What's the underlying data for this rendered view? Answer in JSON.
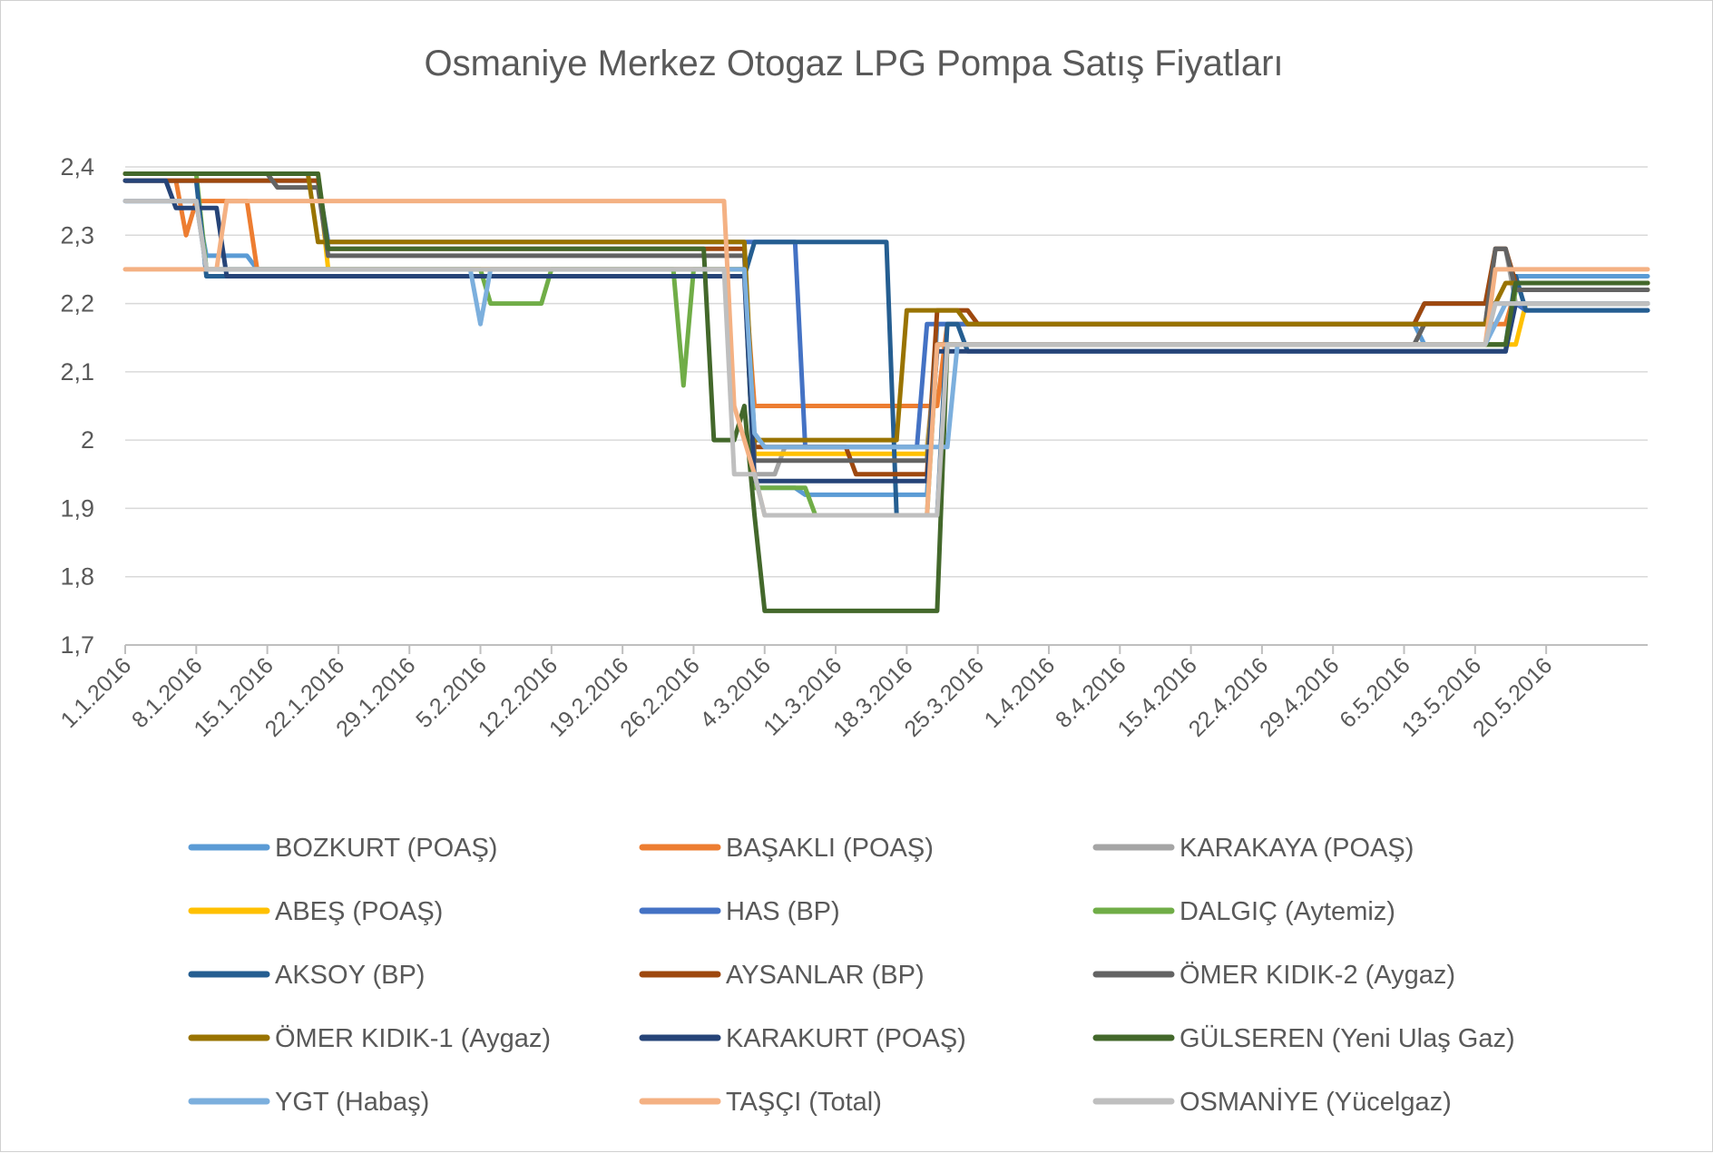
{
  "chart_data": {
    "type": "line",
    "title": "Osmaniye Merkez Otogaz LPG Pompa Satış Fiyatları",
    "xlabel": "",
    "ylabel": "",
    "ylim": [
      1.7,
      2.4
    ],
    "y_ticks": [
      "1,7",
      "1,8",
      "1,9",
      "2",
      "2,1",
      "2,2",
      "2,3",
      "2,4"
    ],
    "y_tick_values": [
      1.7,
      1.8,
      1.9,
      2.0,
      2.1,
      2.2,
      2.3,
      2.4
    ],
    "x_range": [
      "1.1.2016",
      "30.5.2016"
    ],
    "x_ticks": [
      "1.1.2016",
      "8.1.2016",
      "15.1.2016",
      "22.1.2016",
      "29.1.2016",
      "5.2.2016",
      "12.2.2016",
      "19.2.2016",
      "26.2.2016",
      "4.3.2016",
      "11.3.2016",
      "18.3.2016",
      "25.3.2016",
      "1.4.2016",
      "8.4.2016",
      "15.4.2016",
      "22.4.2016",
      "29.4.2016",
      "6.5.2016",
      "13.5.2016",
      "20.5.2016"
    ],
    "grid": true,
    "legend_position": "bottom",
    "series": [
      {
        "name": "BOZKURT (POAŞ)",
        "color": "#5B9BD5",
        "points": [
          [
            "1.1.2016",
            2.35
          ],
          [
            "8.1.2016",
            2.35
          ],
          [
            "9.1.2016",
            2.27
          ],
          [
            "13.1.2016",
            2.27
          ],
          [
            "14.1.2016",
            2.25
          ],
          [
            "26.2.2016",
            2.25
          ],
          [
            "27.2.2016",
            2.25
          ],
          [
            "2.3.2016",
            2.25
          ],
          [
            "3.3.2016",
            1.93
          ],
          [
            "7.3.2016",
            1.93
          ],
          [
            "8.3.2016",
            1.92
          ],
          [
            "20.3.2016",
            1.92
          ],
          [
            "21.3.2016",
            2.17
          ],
          [
            "3.4.2016",
            2.17
          ],
          [
            "7.4.2016",
            2.17
          ],
          [
            "7.5.2016",
            2.17
          ],
          [
            "8.5.2016",
            2.14
          ],
          [
            "16.5.2016",
            2.14
          ],
          [
            "17.5.2016",
            2.24
          ],
          [
            "30.5.2016",
            2.24
          ]
        ]
      },
      {
        "name": "BAŞAKLI (POAŞ)",
        "color": "#ED7D31",
        "points": [
          [
            "1.1.2016",
            2.38
          ],
          [
            "6.1.2016",
            2.38
          ],
          [
            "7.1.2016",
            2.3
          ],
          [
            "8.1.2016",
            2.35
          ],
          [
            "13.1.2016",
            2.35
          ],
          [
            "14.1.2016",
            2.25
          ],
          [
            "26.2.2016",
            2.25
          ],
          [
            "27.2.2016",
            2.25
          ],
          [
            "2.3.2016",
            2.25
          ],
          [
            "3.3.2016",
            2.05
          ],
          [
            "21.3.2016",
            2.05
          ],
          [
            "22.3.2016",
            2.17
          ],
          [
            "7.5.2016",
            2.17
          ],
          [
            "8.5.2016",
            2.17
          ],
          [
            "16.5.2016",
            2.17
          ],
          [
            "17.5.2016",
            2.22
          ],
          [
            "30.5.2016",
            2.22
          ]
        ]
      },
      {
        "name": "KARAKAYA (POAŞ)",
        "color": "#A5A5A5",
        "points": [
          [
            "1.1.2016",
            2.35
          ],
          [
            "8.1.2016",
            2.35
          ],
          [
            "9.1.2016",
            2.25
          ],
          [
            "26.2.2016",
            2.25
          ],
          [
            "2.3.2016",
            2.25
          ],
          [
            "3.3.2016",
            1.95
          ],
          [
            "5.3.2016",
            1.95
          ],
          [
            "6.3.2016",
            1.99
          ],
          [
            "20.3.2016",
            1.99
          ],
          [
            "21.3.2016",
            2.14
          ],
          [
            "7.5.2016",
            2.14
          ],
          [
            "8.5.2016",
            2.17
          ],
          [
            "14.5.2016",
            2.17
          ],
          [
            "15.5.2016",
            2.28
          ],
          [
            "16.5.2016",
            2.28
          ],
          [
            "17.5.2016",
            2.2
          ],
          [
            "30.5.2016",
            2.2
          ]
        ]
      },
      {
        "name": "ABEŞ (POAŞ)",
        "color": "#FFC000",
        "points": [
          [
            "1.1.2016",
            2.39
          ],
          [
            "20.1.2016",
            2.39
          ],
          [
            "21.1.2016",
            2.25
          ],
          [
            "26.2.2016",
            2.25
          ],
          [
            "2.3.2016",
            2.25
          ],
          [
            "3.3.2016",
            1.98
          ],
          [
            "20.3.2016",
            1.98
          ],
          [
            "21.3.2016",
            2.14
          ],
          [
            "16.5.2016",
            2.14
          ],
          [
            "17.5.2016",
            2.14
          ],
          [
            "18.5.2016",
            2.2
          ],
          [
            "30.5.2016",
            2.2
          ]
        ]
      },
      {
        "name": "HAS (BP)",
        "color": "#4472C4",
        "points": [
          [
            "1.1.2016",
            2.38
          ],
          [
            "20.1.2016",
            2.38
          ],
          [
            "21.1.2016",
            2.29
          ],
          [
            "2.3.2016",
            2.29
          ],
          [
            "3.3.2016",
            2.29
          ],
          [
            "7.3.2016",
            2.29
          ],
          [
            "8.3.2016",
            1.99
          ],
          [
            "11.3.2016",
            1.99
          ],
          [
            "12.3.2016",
            1.99
          ],
          [
            "19.3.2016",
            1.99
          ],
          [
            "20.3.2016",
            2.17
          ],
          [
            "22.3.2016",
            2.17
          ],
          [
            "23.3.2016",
            2.17
          ],
          [
            "7.5.2016",
            2.17
          ],
          [
            "8.5.2016",
            2.2
          ],
          [
            "17.5.2016",
            2.2
          ],
          [
            "18.5.2016",
            2.19
          ],
          [
            "30.5.2016",
            2.19
          ]
        ]
      },
      {
        "name": "DALGIÇ (Aytemiz)",
        "color": "#70AD47",
        "points": [
          [
            "1.1.2016",
            2.39
          ],
          [
            "8.1.2016",
            2.39
          ],
          [
            "9.1.2016",
            2.25
          ],
          [
            "5.2.2016",
            2.25
          ],
          [
            "6.2.2016",
            2.2
          ],
          [
            "11.2.2016",
            2.2
          ],
          [
            "12.2.2016",
            2.25
          ],
          [
            "24.2.2016",
            2.25
          ],
          [
            "25.2.2016",
            2.08
          ],
          [
            "26.2.2016",
            2.25
          ],
          [
            "2.3.2016",
            2.25
          ],
          [
            "3.3.2016",
            1.93
          ],
          [
            "8.3.2016",
            1.93
          ],
          [
            "9.3.2016",
            1.89
          ],
          [
            "20.3.2016",
            1.89
          ],
          [
            "21.3.2016",
            2.14
          ],
          [
            "15.5.2016",
            2.14
          ],
          [
            "16.5.2016",
            2.14
          ],
          [
            "17.5.2016",
            2.22
          ],
          [
            "30.5.2016",
            2.22
          ]
        ]
      },
      {
        "name": "AKSOY (BP)",
        "color": "#255E91",
        "points": [
          [
            "1.1.2016",
            2.38
          ],
          [
            "8.1.2016",
            2.38
          ],
          [
            "9.1.2016",
            2.24
          ],
          [
            "2.3.2016",
            2.24
          ],
          [
            "3.3.2016",
            2.29
          ],
          [
            "16.3.2016",
            2.29
          ],
          [
            "17.3.2016",
            1.89
          ],
          [
            "21.3.2016",
            1.89
          ],
          [
            "22.3.2016",
            2.17
          ],
          [
            "23.3.2016",
            2.17
          ],
          [
            "24.3.2016",
            2.13
          ],
          [
            "16.5.2016",
            2.13
          ],
          [
            "17.5.2016",
            2.24
          ],
          [
            "18.5.2016",
            2.19
          ],
          [
            "30.5.2016",
            2.19
          ]
        ]
      },
      {
        "name": "AYSANLAR (BP)",
        "color": "#9E480E",
        "points": [
          [
            "1.1.2016",
            2.38
          ],
          [
            "20.1.2016",
            2.38
          ],
          [
            "21.1.2016",
            2.28
          ],
          [
            "2.3.2016",
            2.28
          ],
          [
            "3.3.2016",
            1.99
          ],
          [
            "12.3.2016",
            1.99
          ],
          [
            "13.3.2016",
            1.95
          ],
          [
            "20.3.2016",
            1.95
          ],
          [
            "21.3.2016",
            2.19
          ],
          [
            "24.3.2016",
            2.19
          ],
          [
            "25.3.2016",
            2.17
          ],
          [
            "7.5.2016",
            2.17
          ],
          [
            "8.5.2016",
            2.2
          ],
          [
            "14.5.2016",
            2.2
          ],
          [
            "15.5.2016",
            2.28
          ],
          [
            "16.5.2016",
            2.28
          ],
          [
            "17.5.2016",
            2.23
          ],
          [
            "30.5.2016",
            2.23
          ]
        ]
      },
      {
        "name": "ÖMER KIDIK-2 (Aygaz)",
        "color": "#636363",
        "points": [
          [
            "1.1.2016",
            2.39
          ],
          [
            "15.1.2016",
            2.39
          ],
          [
            "16.1.2016",
            2.37
          ],
          [
            "19.1.2016",
            2.37
          ],
          [
            "20.1.2016",
            2.37
          ],
          [
            "21.1.2016",
            2.27
          ],
          [
            "2.3.2016",
            2.27
          ],
          [
            "3.3.2016",
            1.97
          ],
          [
            "20.3.2016",
            1.97
          ],
          [
            "21.3.2016",
            2.14
          ],
          [
            "7.5.2016",
            2.14
          ],
          [
            "8.5.2016",
            2.17
          ],
          [
            "14.5.2016",
            2.17
          ],
          [
            "15.5.2016",
            2.28
          ],
          [
            "16.5.2016",
            2.28
          ],
          [
            "17.5.2016",
            2.22
          ],
          [
            "30.5.2016",
            2.22
          ]
        ]
      },
      {
        "name": "ÖMER KIDIK-1 (Aygaz)",
        "color": "#997300",
        "points": [
          [
            "1.1.2016",
            2.39
          ],
          [
            "19.1.2016",
            2.39
          ],
          [
            "20.1.2016",
            2.29
          ],
          [
            "2.3.2016",
            2.29
          ],
          [
            "3.3.2016",
            2.0
          ],
          [
            "17.3.2016",
            2.0
          ],
          [
            "18.3.2016",
            2.19
          ],
          [
            "22.3.2016",
            2.19
          ],
          [
            "23.3.2016",
            2.19
          ],
          [
            "24.3.2016",
            2.17
          ],
          [
            "7.5.2016",
            2.17
          ],
          [
            "8.5.2016",
            2.17
          ],
          [
            "14.5.2016",
            2.17
          ],
          [
            "15.5.2016",
            2.2
          ],
          [
            "16.5.2016",
            2.23
          ],
          [
            "30.5.2016",
            2.23
          ]
        ]
      },
      {
        "name": "KARAKURT (POAŞ)",
        "color": "#264478",
        "points": [
          [
            "1.1.2016",
            2.38
          ],
          [
            "5.1.2016",
            2.38
          ],
          [
            "6.1.2016",
            2.34
          ],
          [
            "10.1.2016",
            2.34
          ],
          [
            "11.1.2016",
            2.24
          ],
          [
            "2.3.2016",
            2.24
          ],
          [
            "3.3.2016",
            1.94
          ],
          [
            "20.3.2016",
            1.94
          ],
          [
            "21.3.2016",
            2.13
          ],
          [
            "16.5.2016",
            2.13
          ],
          [
            "17.5.2016",
            2.2
          ],
          [
            "30.5.2016",
            2.2
          ]
        ]
      },
      {
        "name": "GÜLSEREN (Yeni Ulaş Gaz)",
        "color": "#43682B",
        "points": [
          [
            "1.1.2016",
            2.39
          ],
          [
            "20.1.2016",
            2.39
          ],
          [
            "21.1.2016",
            2.28
          ],
          [
            "27.2.2016",
            2.28
          ],
          [
            "28.2.2016",
            2.0
          ],
          [
            "1.3.2016",
            2.0
          ],
          [
            "2.3.2016",
            2.05
          ],
          [
            "3.3.2016",
            1.89
          ],
          [
            "4.3.2016",
            1.75
          ],
          [
            "21.3.2016",
            1.75
          ],
          [
            "22.3.2016",
            2.14
          ],
          [
            "16.5.2016",
            2.14
          ],
          [
            "17.5.2016",
            2.23
          ],
          [
            "30.5.2016",
            2.23
          ]
        ]
      },
      {
        "name": "YGT (Habaş)",
        "color": "#7CAFDD",
        "points": [
          [
            "1.1.2016",
            2.35
          ],
          [
            "8.1.2016",
            2.35
          ],
          [
            "9.1.2016",
            2.25
          ],
          [
            "4.2.2016",
            2.25
          ],
          [
            "5.2.2016",
            2.17
          ],
          [
            "6.2.2016",
            2.25
          ],
          [
            "26.2.2016",
            2.25
          ],
          [
            "2.3.2016",
            2.25
          ],
          [
            "3.3.2016",
            2.01
          ],
          [
            "4.3.2016",
            1.99
          ],
          [
            "22.3.2016",
            1.99
          ],
          [
            "23.3.2016",
            2.14
          ],
          [
            "14.5.2016",
            2.14
          ],
          [
            "15.5.2016",
            2.17
          ],
          [
            "16.5.2016",
            2.2
          ],
          [
            "30.5.2016",
            2.2
          ]
        ]
      },
      {
        "name": "TAŞÇI (Total)",
        "color": "#F4B183",
        "points": [
          [
            "1.1.2016",
            2.25
          ],
          [
            "10.1.2016",
            2.25
          ],
          [
            "11.1.2016",
            2.35
          ],
          [
            "29.2.2016",
            2.35
          ],
          [
            "1.3.2016",
            2.05
          ],
          [
            "3.3.2016",
            1.95
          ],
          [
            "4.3.2016",
            1.89
          ],
          [
            "20.3.2016",
            1.89
          ],
          [
            "21.3.2016",
            2.14
          ],
          [
            "7.5.2016",
            2.14
          ],
          [
            "8.5.2016",
            2.14
          ],
          [
            "14.5.2016",
            2.14
          ],
          [
            "15.5.2016",
            2.25
          ],
          [
            "30.5.2016",
            2.25
          ]
        ]
      },
      {
        "name": "OSMANİYE (Yücelgaz)",
        "color": "#BFBFBF",
        "points": [
          [
            "1.1.2016",
            2.35
          ],
          [
            "8.1.2016",
            2.35
          ],
          [
            "9.1.2016",
            2.25
          ],
          [
            "29.2.2016",
            2.25
          ],
          [
            "1.3.2016",
            1.95
          ],
          [
            "3.3.2016",
            1.95
          ],
          [
            "4.3.2016",
            1.89
          ],
          [
            "21.3.2016",
            1.89
          ],
          [
            "22.3.2016",
            2.14
          ],
          [
            "14.5.2016",
            2.14
          ],
          [
            "15.5.2016",
            2.2
          ],
          [
            "30.5.2016",
            2.2
          ]
        ]
      }
    ]
  }
}
